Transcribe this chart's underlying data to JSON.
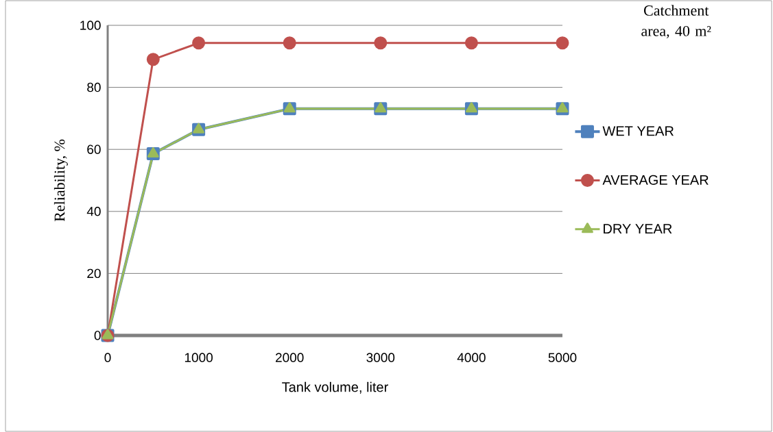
{
  "chart_data": {
    "type": "line",
    "title": "Catchment area, 40 m²",
    "xlabel": "Tank volume, liter",
    "ylabel": "Reliability, %",
    "x": [
      0,
      500,
      1000,
      2000,
      3000,
      4000,
      5000
    ],
    "series": [
      {
        "name": "WET YEAR",
        "color": "#4f81bd",
        "marker": "square",
        "values": [
          0,
          58.6,
          66.4,
          73.1,
          73.1,
          73.1,
          73.1
        ]
      },
      {
        "name": "AVERAGE YEAR",
        "color": "#c0504d",
        "marker": "circle",
        "values": [
          0,
          89,
          94.3,
          94.3,
          94.3,
          94.3,
          94.3
        ]
      },
      {
        "name": "DRY YEAR",
        "color": "#9bbb59",
        "marker": "triangle",
        "values": [
          0,
          58.6,
          66.4,
          73.1,
          73.1,
          73.1,
          73.1
        ]
      }
    ],
    "xlim": [
      0,
      5000
    ],
    "xticks": [
      0,
      1000,
      2000,
      3000,
      4000,
      5000
    ],
    "ylim": [
      0,
      100
    ],
    "yticks": [
      0,
      20,
      40,
      60,
      80,
      100
    ],
    "grid": "y",
    "legend": "right",
    "line_style": "solid"
  }
}
